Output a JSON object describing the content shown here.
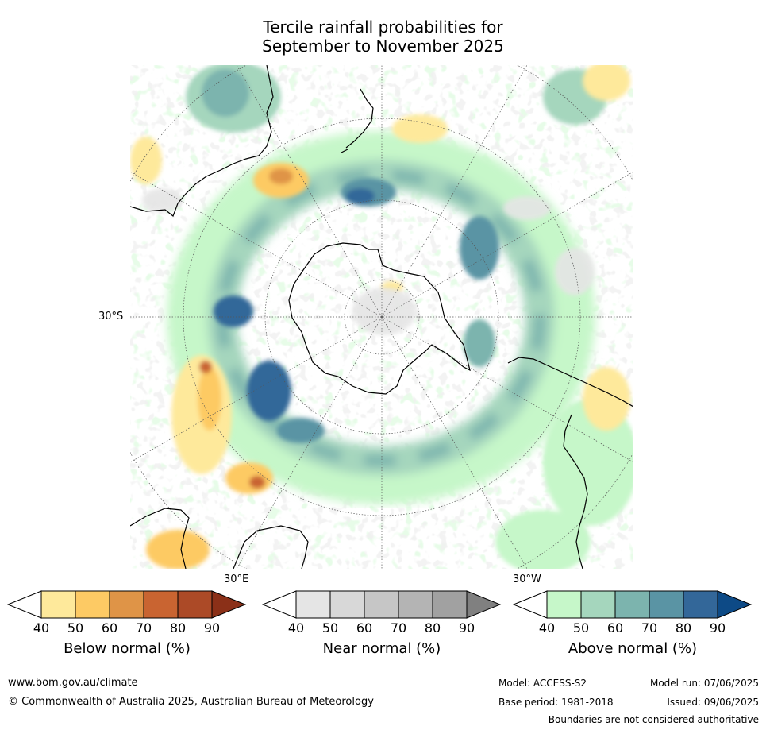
{
  "title_line1": "Tercile rainfall probabilities for",
  "title_line2": "September to November 2025",
  "map": {
    "projection": "south-polar-stereographic",
    "lat_label": "30°S",
    "lon_labels": [
      "30°E",
      "30°W"
    ],
    "outline_color": "#000000",
    "graticule_color": "#555555"
  },
  "colorbars": [
    {
      "label": "Below normal (%)",
      "ticks": [
        "40",
        "50",
        "60",
        "70",
        "80",
        "90"
      ],
      "colors": [
        "#ffffff",
        "#fee99b",
        "#fdca64",
        "#df9447",
        "#c96431",
        "#ac4a27",
        "#8b3018"
      ]
    },
    {
      "label": "Near normal (%)",
      "ticks": [
        "40",
        "50",
        "60",
        "70",
        "80",
        "90"
      ],
      "colors": [
        "#ffffff",
        "#e5e5e5",
        "#d8d8d8",
        "#c6c6c6",
        "#b4b4b4",
        "#a1a1a1",
        "#808080"
      ]
    },
    {
      "label": "Above normal (%)",
      "ticks": [
        "40",
        "50",
        "60",
        "70",
        "80",
        "90"
      ],
      "colors": [
        "#ffffff",
        "#c6f7c9",
        "#a5d6bd",
        "#7cb4ae",
        "#5a94a4",
        "#336799",
        "#0d4a86"
      ]
    }
  ],
  "footer": {
    "url": "www.bom.gov.au/climate",
    "copyright": "© Commonwealth of Australia 2025, Australian Bureau of Meteorology",
    "model": "Model: ACCESS-S2",
    "base_period": "Base period: 1981-2018",
    "model_run": "Model run: 07/06/2025",
    "issued": "Issued: 09/06/2025",
    "disclaimer": "Boundaries are not considered authoritative"
  }
}
